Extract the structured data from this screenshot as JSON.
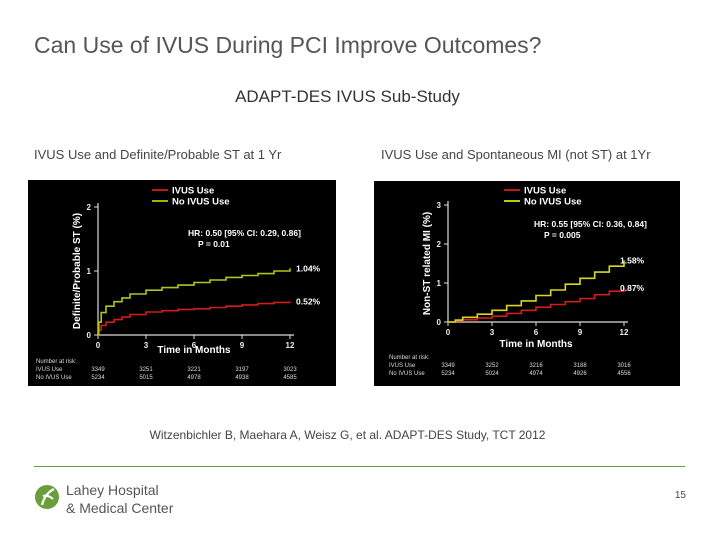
{
  "header": {
    "title": "Can Use of IVUS During PCI Improve Outcomes?",
    "subtitle": "ADAPT-DES IVUS Sub-Study"
  },
  "panels": {
    "left_caption": "IVUS Use and Definite/Probable ST at 1 Yr",
    "right_caption": "IVUS Use and Spontaneous MI (not ST) at 1Yr"
  },
  "chart_data": [
    {
      "type": "line",
      "title": "IVUS Use and Definite/Probable ST at 1 Yr",
      "xlabel": "Time in Months",
      "ylabel": "Definite/Probable ST (%)",
      "xlim": [
        0,
        12
      ],
      "ylim": [
        0,
        2
      ],
      "xticks": [
        "0",
        "3",
        "6",
        "9",
        "12"
      ],
      "yticks": [
        "0",
        "1",
        "2"
      ],
      "legend": [
        "IVUS Use",
        "No IVUS Use"
      ],
      "colors": {
        "ivus": "#d01c1c",
        "no_ivus": "#b5c21a"
      },
      "annotation_hr": "HR: 0.50 [95% CI: 0.29, 0.86]",
      "annotation_p": "P = 0.01",
      "end_labels": {
        "ivus": "0.52%",
        "no_ivus": "1.04%"
      },
      "series": [
        {
          "name": "IVUS Use",
          "x": [
            0,
            0.05,
            0.2,
            0.5,
            1,
            1.5,
            2,
            3,
            4,
            5,
            6,
            7,
            8,
            9,
            10,
            11,
            12
          ],
          "y": [
            0,
            0.08,
            0.15,
            0.2,
            0.24,
            0.28,
            0.32,
            0.36,
            0.38,
            0.4,
            0.41,
            0.43,
            0.45,
            0.47,
            0.49,
            0.51,
            0.52
          ]
        },
        {
          "name": "No IVUS Use",
          "x": [
            0,
            0.05,
            0.2,
            0.5,
            1,
            1.5,
            2,
            3,
            4,
            5,
            6,
            7,
            8,
            9,
            10,
            11,
            12
          ],
          "y": [
            0,
            0.2,
            0.35,
            0.45,
            0.52,
            0.58,
            0.64,
            0.7,
            0.74,
            0.78,
            0.82,
            0.86,
            0.9,
            0.93,
            0.96,
            1.0,
            1.04
          ]
        }
      ],
      "at_risk": {
        "label": "Number at risk:",
        "rows": [
          {
            "name": "IVUS Use",
            "values": [
              "3349",
              "3251",
              "3221",
              "3197",
              "3023"
            ]
          },
          {
            "name": "No IVUS Use",
            "values": [
              "5234",
              "5015",
              "4978",
              "4938",
              "4585"
            ]
          }
        ]
      }
    },
    {
      "type": "line",
      "title": "IVUS Use and Spontaneous MI (not ST) at 1Yr",
      "xlabel": "Time in Months",
      "ylabel": "Non-ST related MI (%)",
      "xlim": [
        0,
        12
      ],
      "ylim": [
        0,
        3
      ],
      "xticks": [
        "0",
        "3",
        "6",
        "9",
        "12"
      ],
      "yticks": [
        "0",
        "1",
        "2",
        "3"
      ],
      "legend": [
        "IVUS Use",
        "No IVUS Use"
      ],
      "colors": {
        "ivus": "#d01c1c",
        "no_ivus": "#d8d81c"
      },
      "annotation_hr": "HR: 0.55 [95% CI: 0.36, 0.84]",
      "annotation_p": "P = 0.005",
      "end_labels": {
        "ivus": "0.87%",
        "no_ivus": "1.58%"
      },
      "series": [
        {
          "name": "IVUS Use",
          "x": [
            0,
            0.5,
            1,
            2,
            3,
            4,
            5,
            6,
            7,
            8,
            9,
            10,
            11,
            12
          ],
          "y": [
            0,
            0.03,
            0.06,
            0.1,
            0.15,
            0.22,
            0.3,
            0.38,
            0.45,
            0.52,
            0.6,
            0.7,
            0.79,
            0.87
          ]
        },
        {
          "name": "No IVUS Use",
          "x": [
            0,
            0.5,
            1,
            2,
            3,
            4,
            5,
            6,
            7,
            8,
            9,
            10,
            11,
            12
          ],
          "y": [
            0,
            0.05,
            0.12,
            0.2,
            0.3,
            0.42,
            0.54,
            0.68,
            0.82,
            0.97,
            1.12,
            1.28,
            1.43,
            1.58
          ]
        }
      ],
      "at_risk": {
        "label": "Number at risk:",
        "rows": [
          {
            "name": "IVUS Use",
            "values": [
              "3349",
              "3252",
              "3216",
              "3188",
              "3016"
            ]
          },
          {
            "name": "No IVUS Use",
            "values": [
              "5234",
              "5024",
              "4974",
              "4926",
              "4556"
            ]
          }
        ]
      }
    }
  ],
  "footer": {
    "citation": "Witzenbichler B, Maehara A, Weisz G, et al. ADAPT-DES Study, TCT 2012",
    "logo_line1": "Lahey Hospital",
    "logo_line2": "& Medical Center",
    "page_number": "15",
    "accent_color": "#6a9e3a"
  }
}
